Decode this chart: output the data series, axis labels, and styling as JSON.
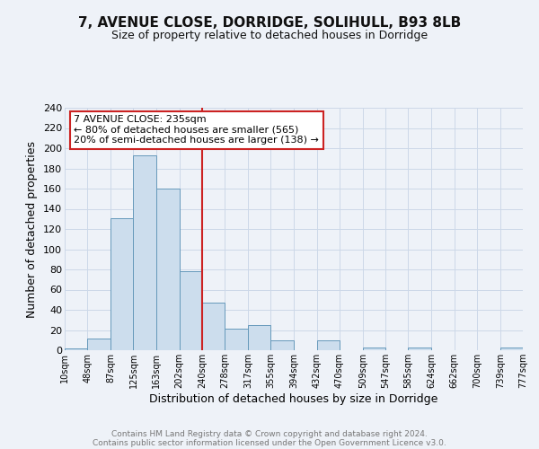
{
  "title": "7, AVENUE CLOSE, DORRIDGE, SOLIHULL, B93 8LB",
  "subtitle": "Size of property relative to detached houses in Dorridge",
  "xlabel": "Distribution of detached houses by size in Dorridge",
  "ylabel": "Number of detached properties",
  "bin_edges": [
    10,
    48,
    87,
    125,
    163,
    202,
    240,
    278,
    317,
    355,
    394,
    432,
    470,
    509,
    547,
    585,
    624,
    662,
    700,
    739,
    777
  ],
  "bar_heights": [
    2,
    12,
    131,
    193,
    160,
    78,
    47,
    21,
    25,
    10,
    0,
    10,
    0,
    3,
    0,
    3,
    0,
    0,
    0,
    3
  ],
  "bar_facecolor": "#ccdded",
  "bar_edgecolor": "#6699bb",
  "vline_x": 240,
  "vline_color": "#cc2222",
  "annotation_text": "7 AVENUE CLOSE: 235sqm\n← 80% of detached houses are smaller (565)\n20% of semi-detached houses are larger (138) →",
  "annotation_box_edgecolor": "#cc2222",
  "annotation_box_facecolor": "#ffffff",
  "footer_line1": "Contains HM Land Registry data © Crown copyright and database right 2024.",
  "footer_line2": "Contains public sector information licensed under the Open Government Licence v3.0.",
  "ylim": [
    0,
    240
  ],
  "yticks": [
    0,
    20,
    40,
    60,
    80,
    100,
    120,
    140,
    160,
    180,
    200,
    220,
    240
  ],
  "xtick_labels": [
    "10sqm",
    "48sqm",
    "87sqm",
    "125sqm",
    "163sqm",
    "202sqm",
    "240sqm",
    "278sqm",
    "317sqm",
    "355sqm",
    "394sqm",
    "432sqm",
    "470sqm",
    "509sqm",
    "547sqm",
    "585sqm",
    "624sqm",
    "662sqm",
    "700sqm",
    "739sqm",
    "777sqm"
  ],
  "grid_color": "#ccd8e8",
  "bg_color": "#eef2f8",
  "title_fontsize": 11,
  "subtitle_fontsize": 9,
  "xlabel_fontsize": 9,
  "ylabel_fontsize": 9,
  "xtick_fontsize": 7,
  "ytick_fontsize": 8,
  "annotation_fontsize": 8,
  "footer_fontsize": 6.5,
  "footer_color": "#777777"
}
